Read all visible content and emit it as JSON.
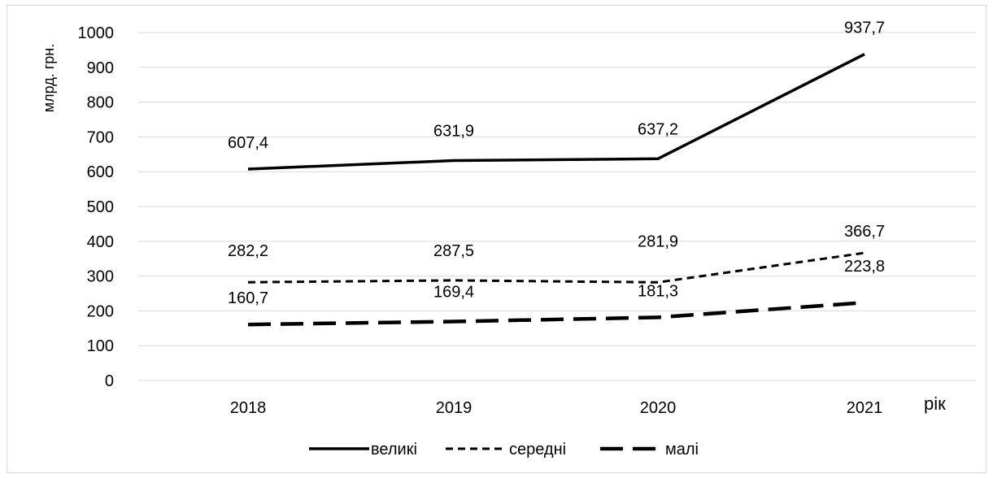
{
  "chart_data": {
    "type": "line",
    "title": "",
    "xlabel": "рік",
    "ylabel": "млрд. грн.",
    "categories": [
      "2018",
      "2019",
      "2020",
      "2021"
    ],
    "ylim": [
      0,
      1000
    ],
    "yticks": [
      0,
      100,
      200,
      300,
      400,
      500,
      600,
      700,
      800,
      900,
      1000
    ],
    "grid": "horizontal",
    "legend": "bottom",
    "series": [
      {
        "name": "великі",
        "style": "solid",
        "color": "#000000",
        "values": [
          607.4,
          631.9,
          637.2,
          937.7
        ],
        "labels": [
          "607,4",
          "631,9",
          "637,2",
          "937,7"
        ]
      },
      {
        "name": "середні",
        "style": "short-dash",
        "color": "#000000",
        "values": [
          282.2,
          287.5,
          281.9,
          366.7
        ],
        "labels": [
          "282,2",
          "287,5",
          "281,9",
          "366,7"
        ]
      },
      {
        "name": "малі",
        "style": "long-dash",
        "color": "#000000",
        "values": [
          160.7,
          169.4,
          181.3,
          223.8
        ],
        "labels": [
          "160,7",
          "169,4",
          "181,3",
          "223,8"
        ]
      }
    ]
  }
}
